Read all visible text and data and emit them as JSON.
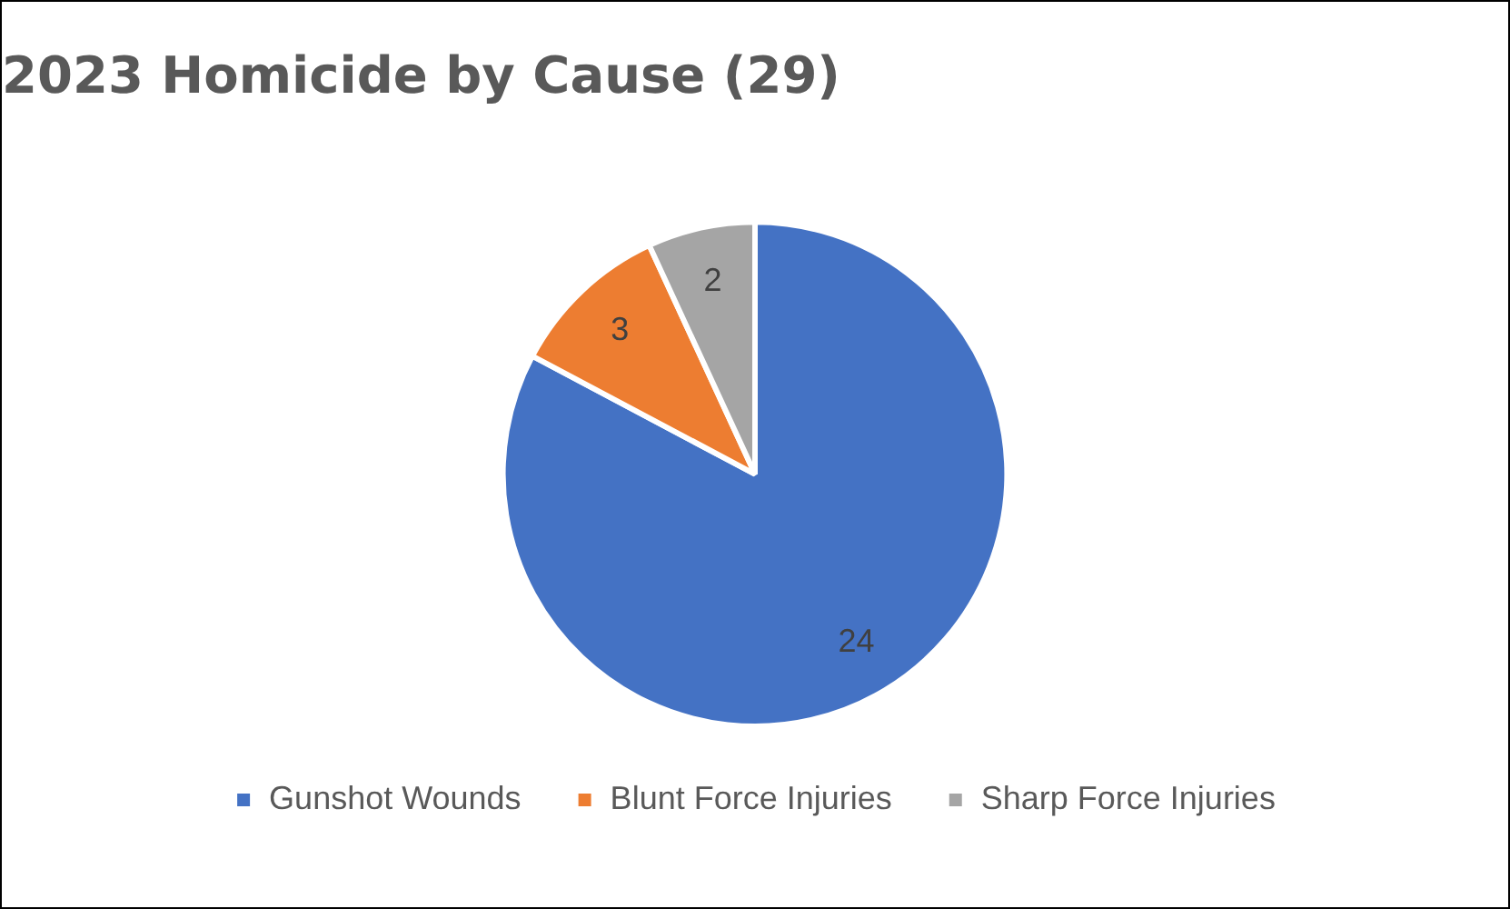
{
  "chart_data": {
    "type": "pie",
    "title": "2023 Homicide by Cause (29)",
    "categories": [
      "Gunshot Wounds",
      "Blunt Force Injuries",
      "Sharp Force Injuries"
    ],
    "values": [
      24,
      3,
      2
    ],
    "colors": [
      "#4472c4",
      "#ed7d31",
      "#a5a5a5"
    ],
    "data_labels": true,
    "legend": "bottom"
  }
}
